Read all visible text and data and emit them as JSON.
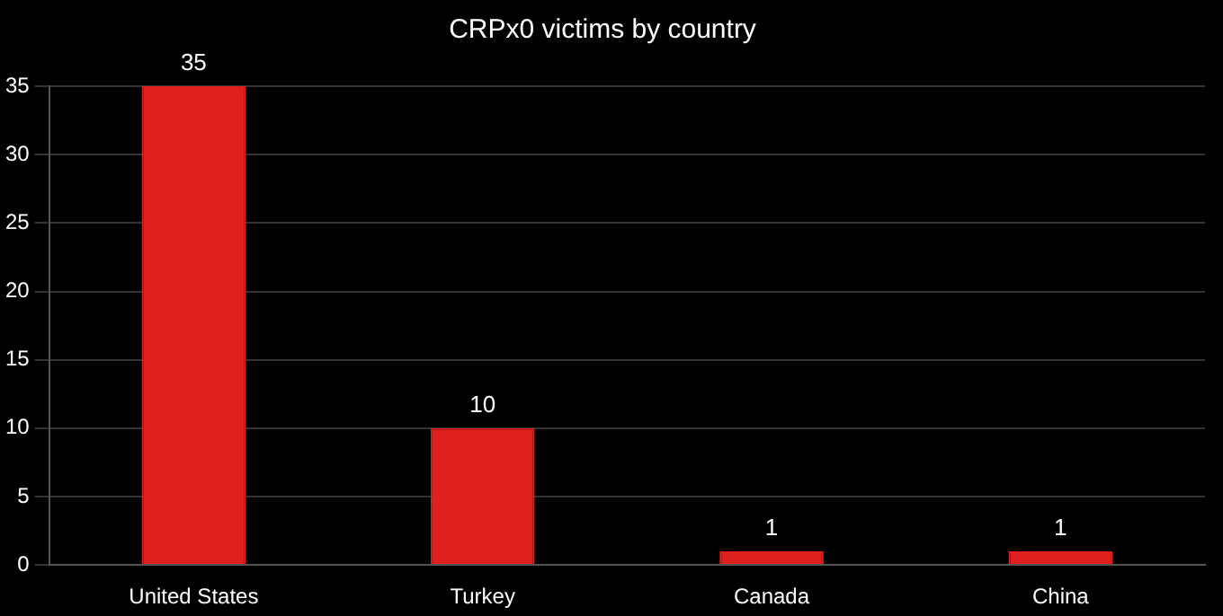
{
  "chart_data": {
    "type": "bar",
    "title": "CRPx0 victims by country",
    "categories": [
      "United States",
      "Turkey",
      "Canada",
      "China"
    ],
    "values": [
      35,
      10,
      1,
      1
    ],
    "color": "#e0201e",
    "ylim": [
      0,
      35
    ],
    "yticks": [
      0,
      5,
      10,
      15,
      20,
      25,
      30,
      35
    ],
    "grid": "y",
    "data_labels": true
  }
}
